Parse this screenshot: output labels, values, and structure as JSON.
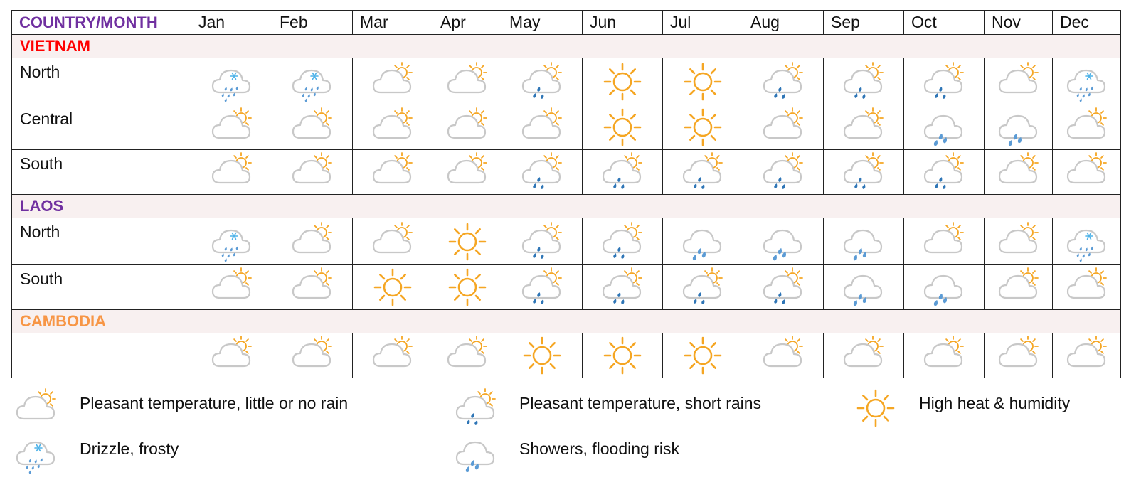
{
  "header": {
    "corner_label": "COUNTRY/MONTH",
    "months": [
      "Jan",
      "Feb",
      "Mar",
      "Apr",
      "May",
      "Jun",
      "Jul",
      "Aug",
      "Sep",
      "Oct",
      "Nov",
      "Dec"
    ]
  },
  "colors": {
    "corner": "#7030a0",
    "vietnam": "#ff0000",
    "laos": "#7030a0",
    "cambodia": "#f79646",
    "section_bg": "#f8f0f0",
    "sun": "#f5a623",
    "cloud": "#c8c8c8",
    "rain_light": "#5b9bd5",
    "rain_dark": "#2e75b6",
    "snow": "#4fb3e8"
  },
  "sections": [
    {
      "country": "VIETNAM",
      "color_key": "vietnam",
      "rows": [
        {
          "region": "North",
          "icons": [
            "drizzle-frosty-icon",
            "drizzle-frosty-icon",
            "cloud-sun-icon",
            "cloud-sun-icon",
            "cloud-sun-rain-icon",
            "sun-icon",
            "sun-icon",
            "cloud-sun-rain-icon",
            "cloud-sun-rain-icon",
            "cloud-sun-rain-icon",
            "cloud-sun-icon",
            "drizzle-frosty-icon"
          ]
        },
        {
          "region": "Central",
          "icons": [
            "cloud-sun-icon",
            "cloud-sun-icon",
            "cloud-sun-icon",
            "cloud-sun-icon",
            "cloud-sun-icon",
            "sun-icon",
            "sun-icon",
            "cloud-sun-icon",
            "cloud-sun-icon",
            "showers-icon",
            "showers-icon",
            "cloud-sun-icon"
          ]
        },
        {
          "region": "South",
          "icons": [
            "cloud-sun-icon",
            "cloud-sun-icon",
            "cloud-sun-icon",
            "cloud-sun-icon",
            "cloud-sun-rain-icon",
            "cloud-sun-rain-icon",
            "cloud-sun-rain-icon",
            "cloud-sun-rain-icon",
            "cloud-sun-rain-icon",
            "cloud-sun-rain-icon",
            "cloud-sun-icon",
            "cloud-sun-icon"
          ]
        }
      ]
    },
    {
      "country": "LAOS",
      "color_key": "laos",
      "rows": [
        {
          "region": "North",
          "icons": [
            "drizzle-frosty-icon",
            "cloud-sun-icon",
            "cloud-sun-icon",
            "sun-icon",
            "cloud-sun-rain-icon",
            "cloud-sun-rain-icon",
            "showers-icon",
            "showers-icon",
            "showers-icon",
            "cloud-sun-icon",
            "cloud-sun-icon",
            "drizzle-frosty-icon"
          ]
        },
        {
          "region": "South",
          "icons": [
            "cloud-sun-icon",
            "cloud-sun-icon",
            "sun-icon",
            "sun-icon",
            "cloud-sun-rain-icon",
            "cloud-sun-rain-icon",
            "cloud-sun-rain-icon",
            "cloud-sun-rain-icon",
            "showers-icon",
            "showers-icon",
            "cloud-sun-icon",
            "cloud-sun-icon"
          ]
        }
      ]
    },
    {
      "country": "CAMBODIA",
      "color_key": "cambodia",
      "rows": [
        {
          "region": "",
          "icons": [
            "cloud-sun-icon",
            "cloud-sun-icon",
            "cloud-sun-icon",
            "cloud-sun-icon",
            "sun-icon",
            "sun-icon",
            "sun-icon",
            "cloud-sun-icon",
            "cloud-sun-icon",
            "cloud-sun-icon",
            "cloud-sun-icon",
            "cloud-sun-icon"
          ]
        }
      ]
    }
  ],
  "legend": [
    {
      "icon": "cloud-sun-icon",
      "text": "Pleasant temperature, little or no rain"
    },
    {
      "icon": "cloud-sun-rain-icon",
      "text": "Pleasant temperature, short rains"
    },
    {
      "icon": "sun-icon",
      "text": "High heat & humidity"
    },
    {
      "icon": "drizzle-frosty-icon",
      "text": "Drizzle, frosty"
    },
    {
      "icon": "showers-icon",
      "text": "Showers, flooding risk"
    }
  ]
}
